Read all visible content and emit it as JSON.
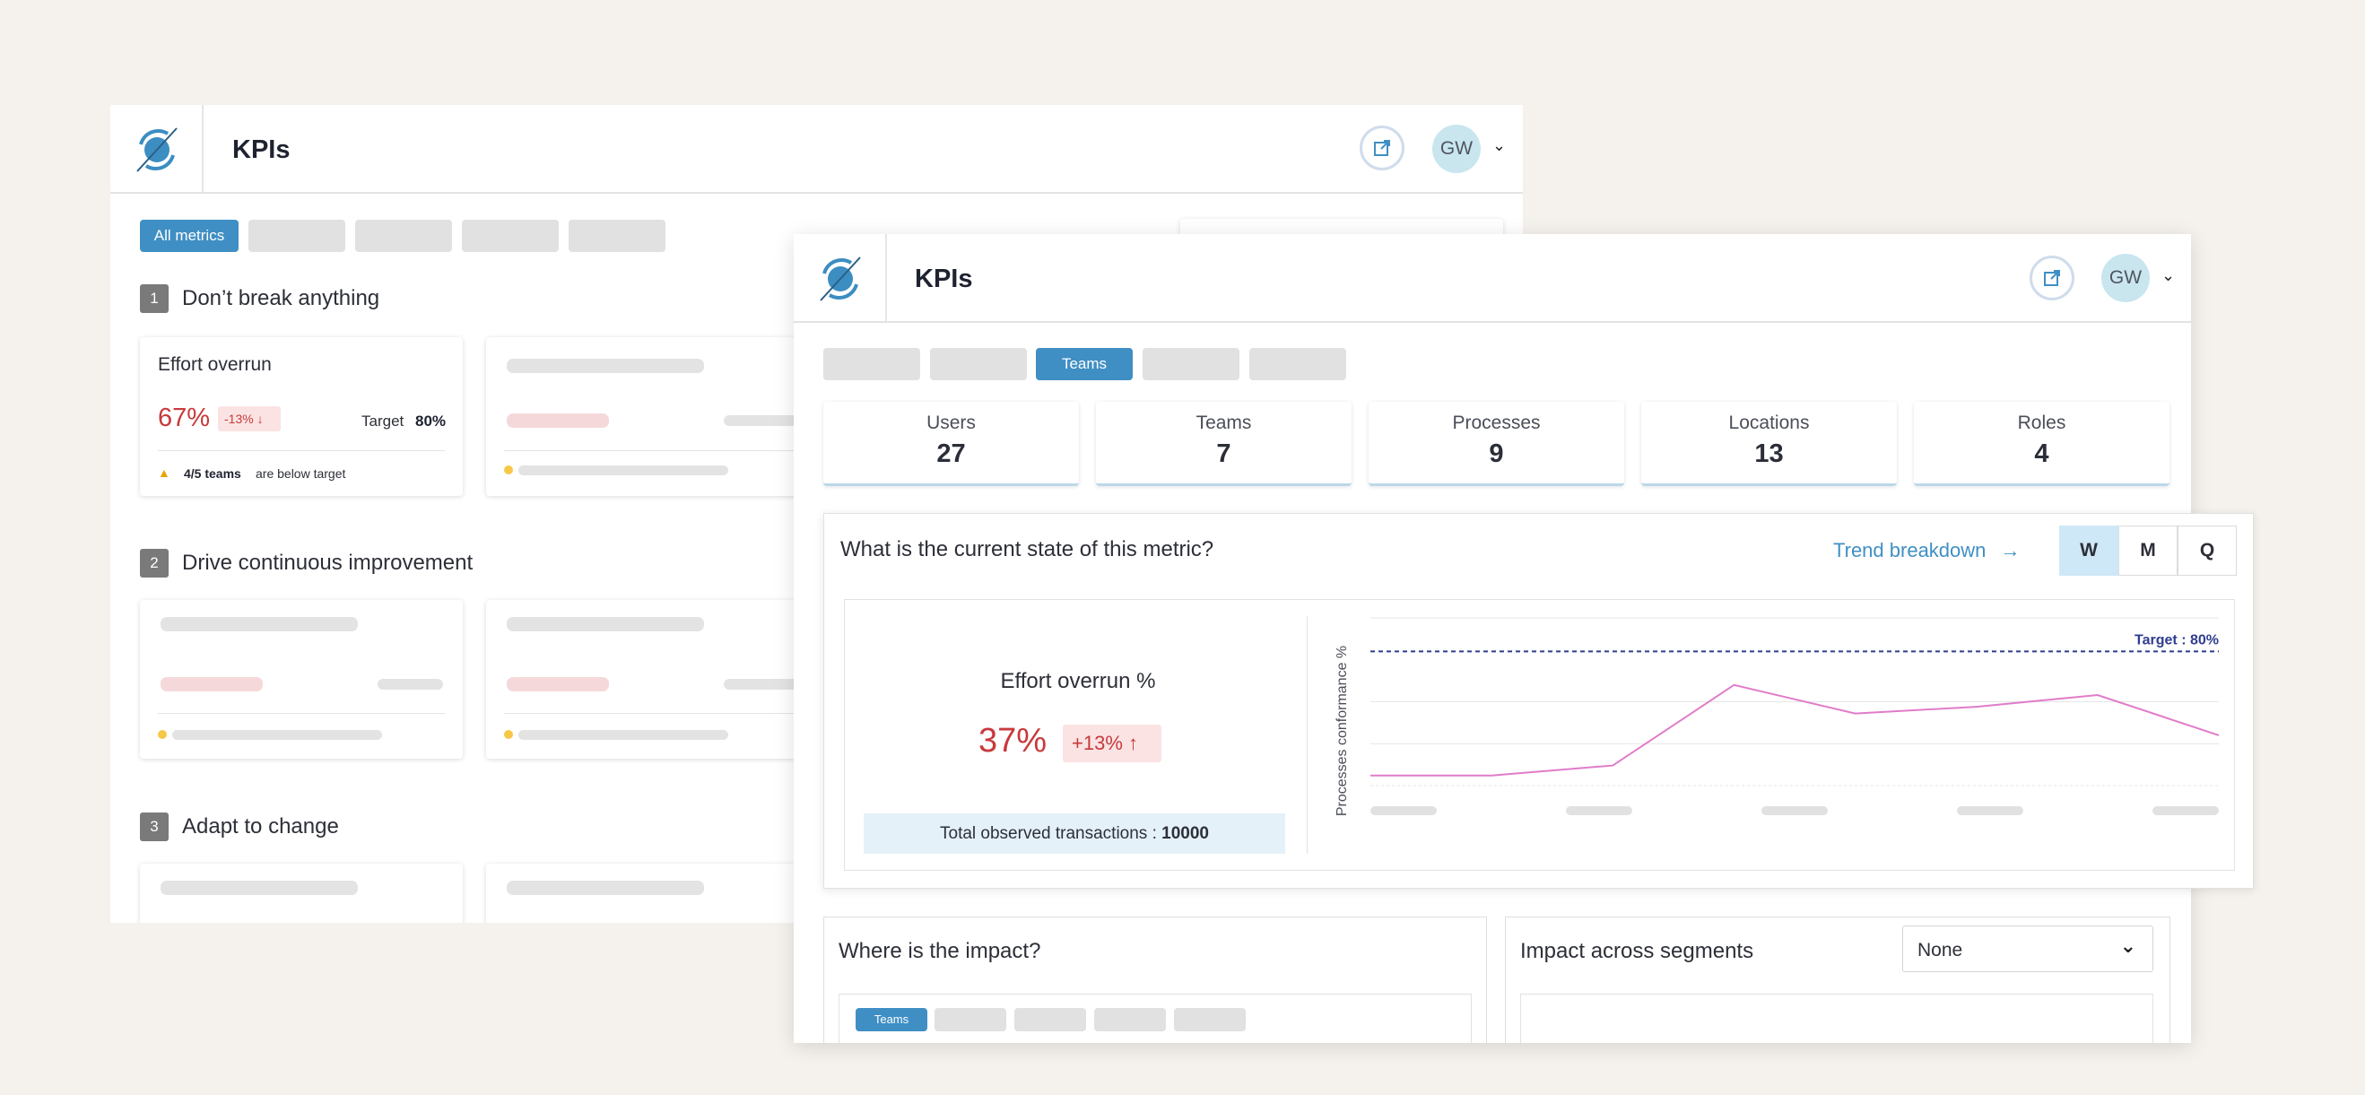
{
  "back_window": {
    "title": "KPIs",
    "avatar_initials": "GW",
    "filter_active_label": "All metrics",
    "sections": [
      {
        "number": "1",
        "title": "Don’t break anything"
      },
      {
        "number": "2",
        "title": "Drive continuous improvement"
      },
      {
        "number": "3",
        "title": "Adapt to change"
      }
    ],
    "kpi_card": {
      "title": "Effort overrun",
      "value": "67%",
      "delta": "-13%",
      "target_label": "Target",
      "target_value": "80%",
      "warning_count": "4/5 teams",
      "warning_text": "are below target"
    }
  },
  "front_window": {
    "title": "KPIs",
    "avatar_initials": "GW",
    "filter_active_label": "Teams",
    "stats": [
      {
        "label": "Users",
        "value": "27"
      },
      {
        "label": "Teams",
        "value": "7"
      },
      {
        "label": "Processes",
        "value": "9"
      },
      {
        "label": "Locations",
        "value": "13"
      },
      {
        "label": "Roles",
        "value": "4"
      }
    ],
    "metric_panel": {
      "question": "What is the current state of this metric?",
      "trend_link": "Trend breakdown",
      "periods": [
        "W",
        "M",
        "Q"
      ],
      "selected_period": "W",
      "metric_name": "Effort overrun %",
      "metric_value": "37%",
      "metric_delta": "+13%",
      "transactions_label": "Total observed transactions :",
      "transactions_value": "10000"
    },
    "impact_panel": {
      "title": "Where is the impact?",
      "active_tab": "Teams"
    },
    "segments_panel": {
      "title": "Impact across segments",
      "dropdown_value": "None"
    }
  },
  "colors": {
    "accent": "#3f8fc4",
    "negative": "#c8393c",
    "trend_line": "#e07cc8",
    "target_line": "#2f3d8f"
  },
  "chart_data": {
    "type": "line",
    "ylabel": "Processes conformance %",
    "ylim": [
      0,
      100
    ],
    "target": {
      "label": "Target : 80%",
      "value": 80
    },
    "x": [
      0,
      1,
      2,
      3,
      4,
      5,
      6,
      7
    ],
    "series": [
      {
        "values": [
          6,
          6,
          12,
          60,
          43,
          47,
          54,
          30
        ]
      }
    ]
  }
}
